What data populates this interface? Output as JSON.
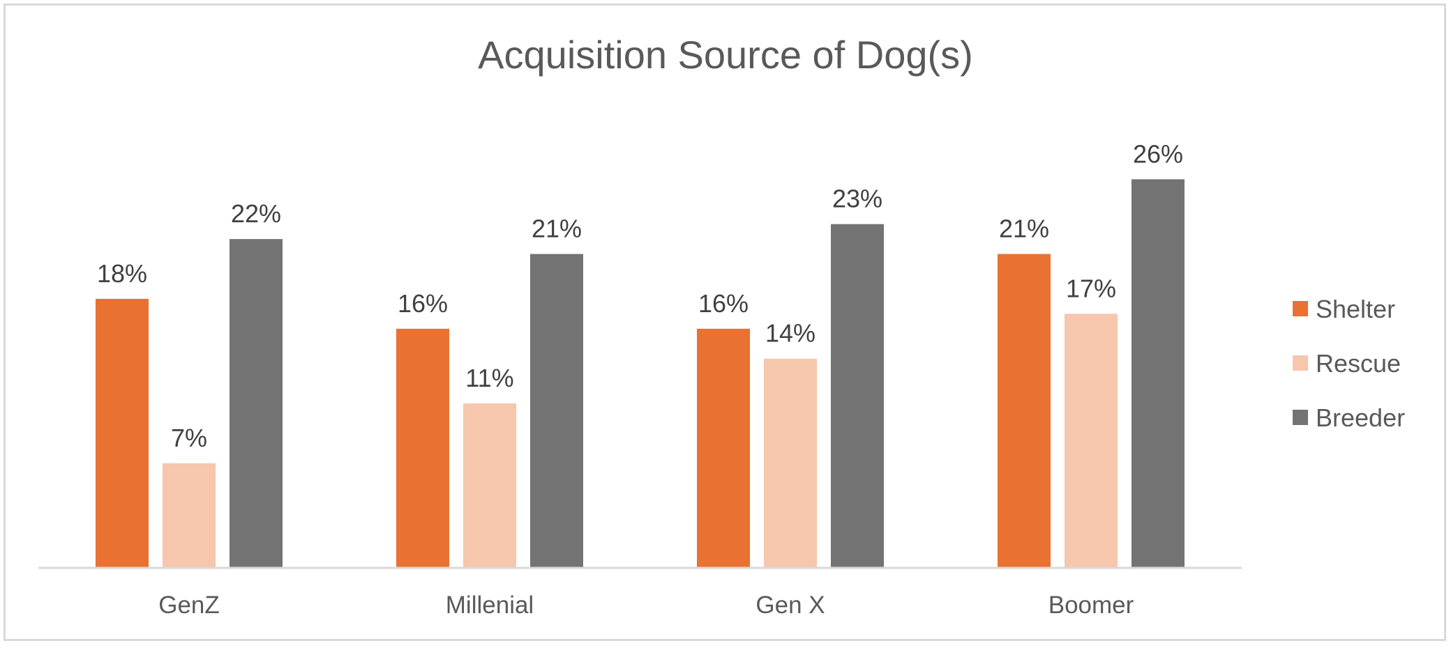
{
  "chart_data": {
    "type": "bar",
    "title": "Acquisition Source of Dog(s)",
    "categories": [
      "GenZ",
      "Millenial",
      "Gen X",
      "Boomer"
    ],
    "series": [
      {
        "name": "Shelter",
        "values": [
          18,
          16,
          16,
          21
        ],
        "labels": [
          "18%",
          "16%",
          "16%",
          "21%"
        ],
        "color": "#E97132"
      },
      {
        "name": "Rescue",
        "values": [
          7,
          11,
          14,
          17
        ],
        "labels": [
          "7%",
          "11%",
          "14%",
          "17%"
        ],
        "color": "#F6C6AD"
      },
      {
        "name": "Breeder",
        "values": [
          22,
          21,
          23,
          26
        ],
        "labels": [
          "22%",
          "21%",
          "23%",
          "26%"
        ],
        "color": "#737373"
      }
    ],
    "xlabel": "",
    "ylabel": "",
    "ylim": [
      0,
      30
    ],
    "grid": false,
    "legend_position": "right",
    "axis_color": "#D9D9D9"
  }
}
